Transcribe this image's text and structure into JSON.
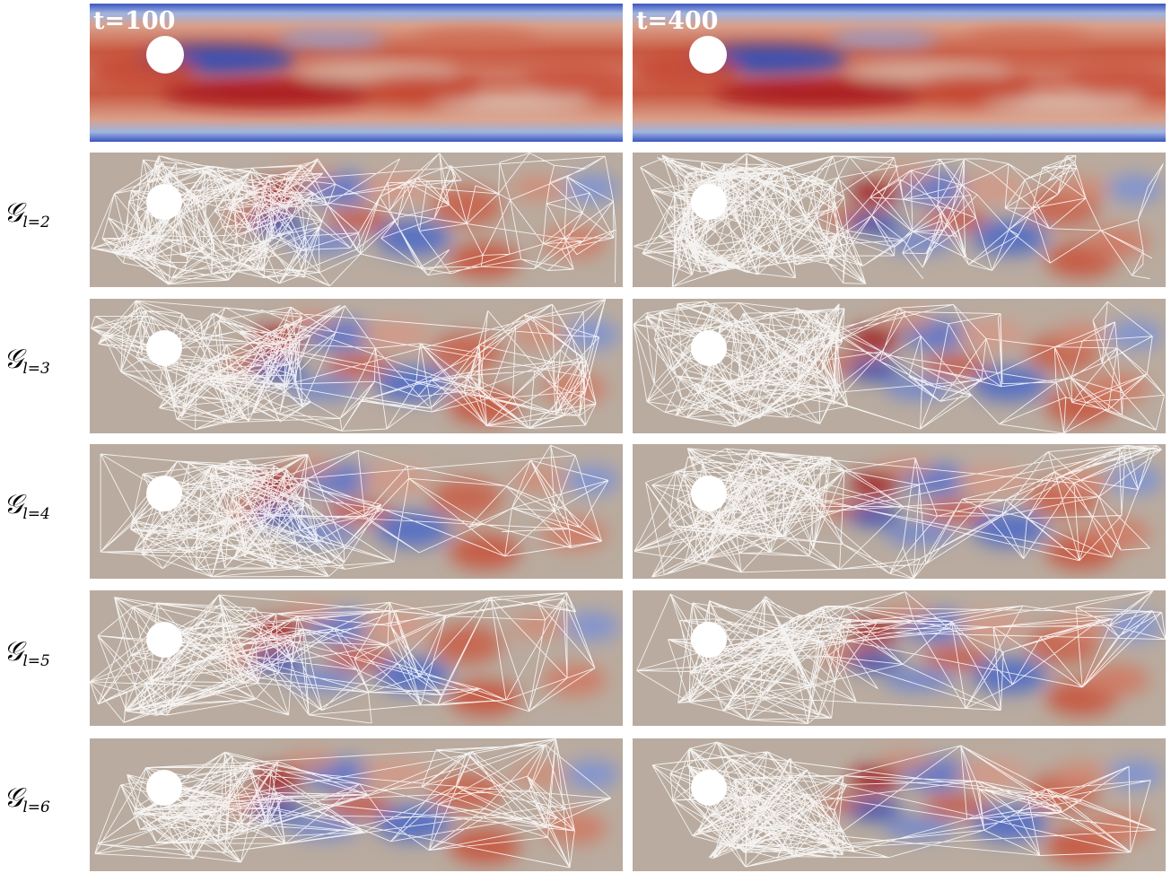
{
  "columns": [
    {
      "time_label": "t=100"
    },
    {
      "time_label": "t=400"
    }
  ],
  "rows": [
    {
      "kind": "field"
    },
    {
      "kind": "graph",
      "symbol": "𝒢",
      "subscript": "l=2",
      "level": 2
    },
    {
      "kind": "graph",
      "symbol": "𝒢",
      "subscript": "l=3",
      "level": 3
    },
    {
      "kind": "graph",
      "symbol": "𝒢",
      "subscript": "l=4",
      "level": 4
    },
    {
      "kind": "graph",
      "symbol": "𝒢",
      "subscript": "l=5",
      "level": 5
    },
    {
      "kind": "graph",
      "symbol": "𝒢",
      "subscript": "l=6",
      "level": 6
    }
  ],
  "colors": {
    "cool": "#3b4cc0",
    "neutral": "#b9ab9f",
    "warm": "#b40426",
    "field_warm": "#c9573f",
    "edge": "#ffffff"
  }
}
